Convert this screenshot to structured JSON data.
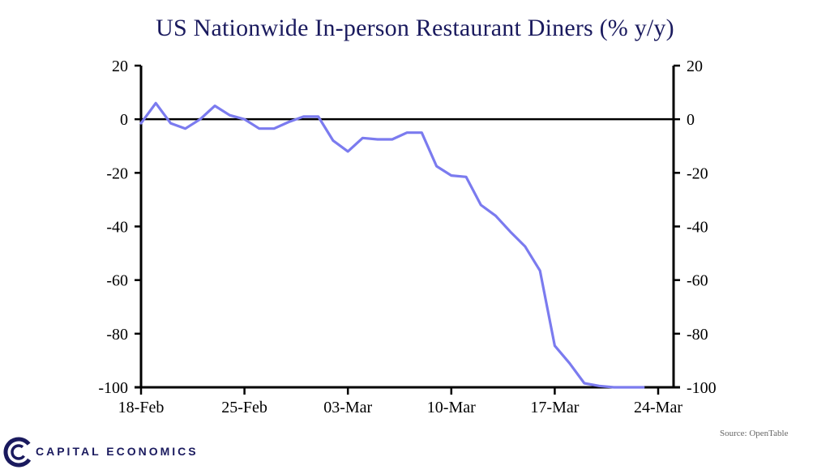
{
  "chart_data": {
    "type": "line",
    "title": "US Nationwide In-person Restaurant Diners (% y/y)",
    "x_tick_labels": [
      "18-Feb",
      "25-Feb",
      "03-Mar",
      "10-Mar",
      "17-Mar",
      "24-Mar"
    ],
    "xlim": [
      "2020-02-18",
      "2020-03-24"
    ],
    "ylim": [
      -100,
      20
    ],
    "y_ticks": [
      20,
      0,
      -20,
      -40,
      -60,
      -80,
      -100
    ],
    "y_tick_labels_left": [
      "20",
      "0",
      "-20",
      "-40",
      "-60",
      "-80",
      "-100"
    ],
    "y_tick_labels_right": [
      "20",
      "0",
      "-20",
      "-40",
      "-60",
      "-80",
      "-100"
    ],
    "zero_line": true,
    "grid": false,
    "series": [
      {
        "color": "#7b7bef",
        "x": [
          "2020-02-18",
          "2020-02-19",
          "2020-02-20",
          "2020-02-21",
          "2020-02-22",
          "2020-02-23",
          "2020-02-24",
          "2020-02-25",
          "2020-02-26",
          "2020-02-27",
          "2020-02-28",
          "2020-02-29",
          "2020-03-01",
          "2020-03-02",
          "2020-03-03",
          "2020-03-04",
          "2020-03-05",
          "2020-03-06",
          "2020-03-07",
          "2020-03-08",
          "2020-03-09",
          "2020-03-10",
          "2020-03-11",
          "2020-03-12",
          "2020-03-13",
          "2020-03-14",
          "2020-03-15",
          "2020-03-16",
          "2020-03-17",
          "2020-03-18",
          "2020-03-19",
          "2020-03-20",
          "2020-03-21",
          "2020-03-22",
          "2020-03-23"
        ],
        "values": [
          -1.5,
          6,
          -1.5,
          -3.5,
          0,
          5,
          1.5,
          0,
          -3.5,
          -3.5,
          -1,
          1,
          1,
          -8,
          -12,
          -7,
          -7.5,
          -7.5,
          -5,
          -5,
          -17.5,
          -21,
          -21.5,
          -32,
          -36,
          -42,
          -47.5,
          -56.5,
          -84.5,
          -91,
          -98.5,
          -99.5,
          -100,
          -100,
          -100
        ]
      }
    ]
  },
  "source": "Source: OpenTable",
  "logo": {
    "text": "CAPITAL ECONOMICS",
    "color": "#1a1a5e"
  }
}
